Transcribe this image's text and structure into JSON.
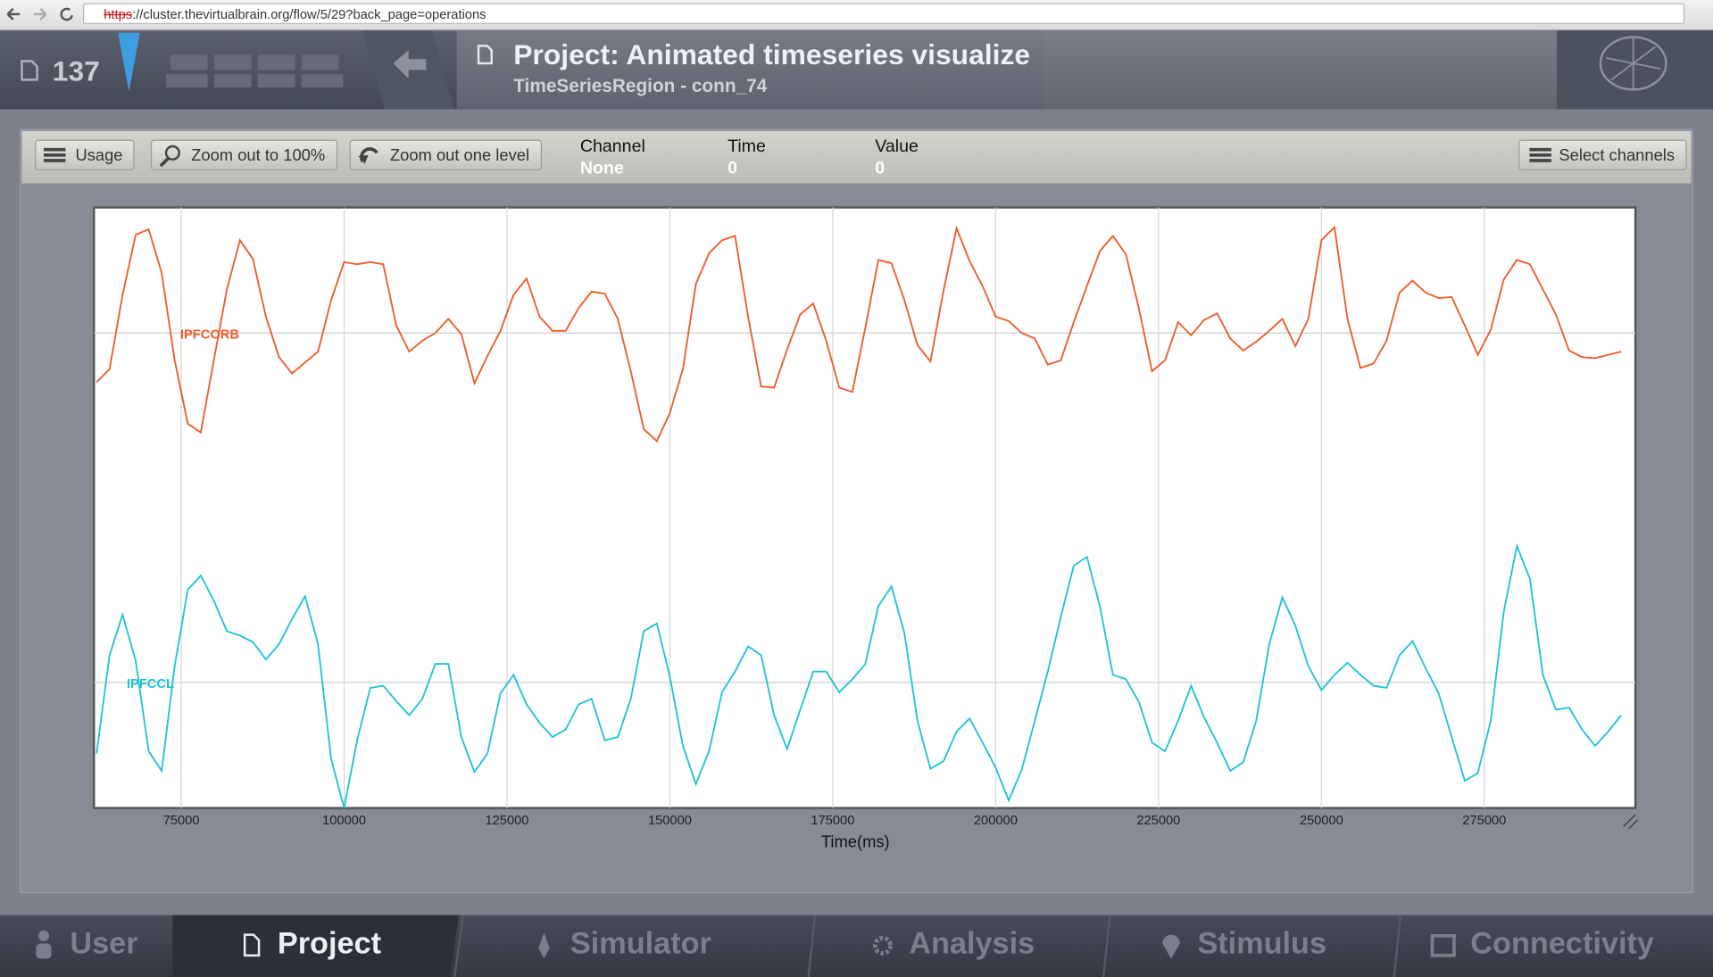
{
  "browser": {
    "url_scheme": "https",
    "url_rest": "://cluster.thevirtualbrain.org/flow/5/29?back_page=operations"
  },
  "header": {
    "counter": "137",
    "title": "Project: Animated timeseries visualize",
    "subtitle": "TimeSeriesRegion - conn_74"
  },
  "toolbar": {
    "buttons": [
      "Usage",
      "Zoom out to 100%",
      "Zoom out one level"
    ],
    "right_button": "Select channels",
    "info": [
      {
        "label": "Channel",
        "value": "None"
      },
      {
        "label": "Time",
        "value": 0
      },
      {
        "label": "Value",
        "value": 0
      }
    ]
  },
  "chart_data": {
    "type": "line",
    "x_label": "Time(ms)",
    "grid": true,
    "xlim": [
      61600,
      298200
    ],
    "xticks": [
      75000,
      100000,
      125000,
      150000,
      175000,
      200000,
      225000,
      250000,
      275000
    ],
    "ylim": [
      0,
      550
    ],
    "x": [
      62000,
      64000,
      66000,
      68000,
      70000,
      72000,
      74000,
      76000,
      78000,
      80000,
      82000,
      84000,
      86000,
      88000,
      90000,
      92000,
      94000,
      96000,
      98000,
      100000,
      102000,
      104000,
      106000,
      108000,
      110000,
      112000,
      114000,
      116000,
      118000,
      120000,
      122000,
      124000,
      126000,
      128000,
      130000,
      132000,
      134000,
      136000,
      138000,
      140000,
      142000,
      144000,
      146000,
      148000,
      150000,
      152000,
      154000,
      156000,
      158000,
      160000,
      162000,
      164000,
      166000,
      168000,
      170000,
      172000,
      174000,
      176000,
      178000,
      180000,
      182000,
      184000,
      186000,
      188000,
      190000,
      192000,
      194000,
      196000,
      198000,
      200000,
      202000,
      204000,
      206000,
      208000,
      210000,
      212000,
      214000,
      216000,
      218000,
      220000,
      222000,
      224000,
      226000,
      228000,
      230000,
      232000,
      234000,
      236000,
      238000,
      240000,
      242000,
      244000,
      246000,
      248000,
      250000,
      252000,
      254000,
      256000,
      258000,
      260000,
      262000,
      264000,
      266000,
      268000,
      270000,
      272000,
      274000,
      276000,
      278000,
      280000,
      282000,
      284000,
      286000,
      288000,
      290000,
      292000,
      294000,
      296000
    ],
    "series": [
      {
        "name": "IPFCORB",
        "color": "#f05a28",
        "values": [
          390,
          402,
          470,
          525,
          530,
          490,
          410,
          352,
          344,
          410,
          475,
          520,
          503,
          450,
          413,
          398,
          408,
          418,
          465,
          500,
          498,
          500,
          498,
          442,
          418,
          428,
          435,
          448,
          434,
          389,
          414,
          437,
          470,
          485,
          450,
          437,
          437,
          458,
          473,
          471,
          448,
          400,
          347,
          336,
          362,
          402,
          480,
          508,
          520,
          524,
          450,
          386,
          385,
          420,
          452,
          462,
          428,
          385,
          381,
          440,
          502,
          499,
          465,
          424,
          409,
          474,
          531,
          501,
          478,
          450,
          446,
          435,
          430,
          406,
          410,
          445,
          478,
          510,
          524,
          507,
          457,
          400,
          410,
          445,
          433,
          447,
          453,
          430,
          419,
          427,
          437,
          448,
          423,
          448,
          520,
          532,
          448,
          403,
          407,
          428,
          472,
          483,
          472,
          467,
          468,
          442,
          415,
          438,
          484,
          502,
          498,
          475,
          452,
          419,
          413,
          412,
          415,
          418
        ]
      },
      {
        "name": "IPFCCL",
        "color": "#1cc4d4",
        "values": [
          50,
          140,
          177,
          135,
          52,
          34,
          130,
          200,
          213,
          190,
          162,
          158,
          152,
          136,
          150,
          173,
          194,
          150,
          45,
          0,
          62,
          110,
          112,
          98,
          85,
          100,
          132,
          132,
          65,
          33,
          50,
          105,
          122,
          95,
          78,
          65,
          72,
          95,
          100,
          62,
          65,
          100,
          162,
          169,
          120,
          57,
          22,
          52,
          106,
          125,
          148,
          140,
          85,
          54,
          90,
          125,
          125,
          106,
          118,
          132,
          185,
          203,
          160,
          80,
          36,
          43,
          70,
          82,
          60,
          37,
          7,
          35,
          80,
          125,
          175,
          222,
          230,
          185,
          122,
          118,
          97,
          60,
          52,
          80,
          112,
          83,
          60,
          34,
          42,
          80,
          150,
          193,
          167,
          130,
          108,
          122,
          133,
          122,
          112,
          110,
          140,
          153,
          128,
          105,
          65,
          25,
          32,
          80,
          180,
          240,
          210,
          122,
          90,
          92,
          72,
          57,
          70,
          85
        ]
      }
    ]
  },
  "nav": [
    "User",
    "Project",
    "Simulator",
    "Analysis",
    "Stimulus",
    "Connectivity"
  ]
}
